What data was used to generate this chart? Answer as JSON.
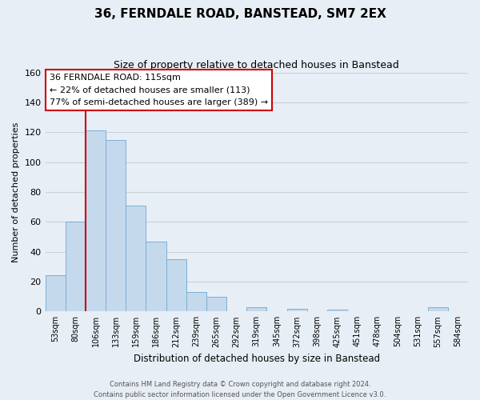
{
  "title": "36, FERNDALE ROAD, BANSTEAD, SM7 2EX",
  "subtitle": "Size of property relative to detached houses in Banstead",
  "xlabel": "Distribution of detached houses by size in Banstead",
  "ylabel": "Number of detached properties",
  "bar_labels": [
    "53sqm",
    "80sqm",
    "106sqm",
    "133sqm",
    "159sqm",
    "186sqm",
    "212sqm",
    "239sqm",
    "265sqm",
    "292sqm",
    "319sqm",
    "345sqm",
    "372sqm",
    "398sqm",
    "425sqm",
    "451sqm",
    "478sqm",
    "504sqm",
    "531sqm",
    "557sqm",
    "584sqm"
  ],
  "bar_values": [
    24,
    60,
    121,
    115,
    71,
    47,
    35,
    13,
    10,
    0,
    3,
    0,
    2,
    0,
    1,
    0,
    0,
    0,
    0,
    3,
    0
  ],
  "bar_color": "#c5d9ed",
  "bar_edge_color": "#7aafd4",
  "vline_x_index": 2,
  "vline_color": "#cc0000",
  "ylim": [
    0,
    160
  ],
  "yticks": [
    0,
    20,
    40,
    60,
    80,
    100,
    120,
    140,
    160
  ],
  "annotation_line1": "36 FERNDALE ROAD: 115sqm",
  "annotation_line2": "← 22% of detached houses are smaller (113)",
  "annotation_line3": "77% of semi-detached houses are larger (389) →",
  "annotation_box_facecolor": "#ffffff",
  "annotation_box_edgecolor": "#cc0000",
  "footer_line1": "Contains HM Land Registry data © Crown copyright and database right 2024.",
  "footer_line2": "Contains public sector information licensed under the Open Government Licence v3.0.",
  "background_color": "#e8eef5",
  "plot_bg_color": "#e8eef5",
  "grid_color": "#c8d0d8",
  "title_fontsize": 11,
  "subtitle_fontsize": 9
}
